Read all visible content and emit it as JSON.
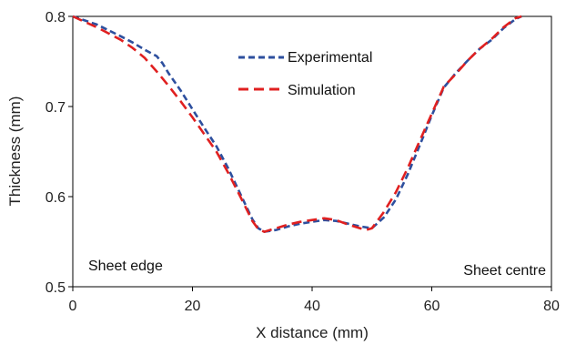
{
  "chart_data": {
    "type": "line",
    "xlabel": "X distance (mm)",
    "ylabel": "Thickness (mm)",
    "xlim": [
      0,
      80
    ],
    "ylim": [
      0.5,
      0.8
    ],
    "x_ticks": [
      "0",
      "20",
      "40",
      "60",
      "80"
    ],
    "y_ticks": [
      "0.5",
      "0.6",
      "0.7",
      "0.8"
    ],
    "grid": false,
    "legend_position": "top-center",
    "annotations": [
      "Sheet edge",
      "Sheet centre"
    ],
    "series": [
      {
        "name": "Experimental",
        "color": "#2d4f9e",
        "dash": "dashed",
        "x": [
          0,
          4,
          8,
          10,
          12,
          14,
          15,
          16,
          18,
          20,
          22,
          24,
          26,
          28,
          30,
          31,
          32,
          34,
          36,
          38,
          40,
          42,
          44,
          46,
          48,
          50,
          52,
          54,
          56,
          58,
          60,
          62,
          64,
          66,
          68,
          70,
          72,
          74,
          75
        ],
        "y": [
          0.8,
          0.791,
          0.778,
          0.771,
          0.763,
          0.756,
          0.748,
          0.737,
          0.718,
          0.697,
          0.676,
          0.656,
          0.631,
          0.603,
          0.575,
          0.565,
          0.561,
          0.563,
          0.567,
          0.57,
          0.572,
          0.574,
          0.573,
          0.57,
          0.567,
          0.565,
          0.577,
          0.597,
          0.625,
          0.657,
          0.69,
          0.721,
          0.737,
          0.751,
          0.764,
          0.774,
          0.787,
          0.797,
          0.8
        ]
      },
      {
        "name": "Simulation",
        "color": "#e02020",
        "dash": "dashed",
        "x": [
          0,
          4,
          8,
          10,
          12,
          14,
          16,
          18,
          20,
          22,
          24,
          26,
          28,
          30,
          31,
          32,
          34,
          36,
          38,
          40,
          42,
          44,
          46,
          48,
          49,
          50,
          52,
          54,
          56,
          58,
          60,
          62,
          64,
          66,
          68,
          70,
          72,
          74,
          75
        ],
        "y": [
          0.8,
          0.788,
          0.774,
          0.765,
          0.754,
          0.739,
          0.723,
          0.706,
          0.688,
          0.669,
          0.65,
          0.626,
          0.6,
          0.573,
          0.564,
          0.561,
          0.565,
          0.569,
          0.572,
          0.574,
          0.576,
          0.574,
          0.569,
          0.565,
          0.563,
          0.565,
          0.583,
          0.605,
          0.632,
          0.662,
          0.692,
          0.722,
          0.736,
          0.751,
          0.764,
          0.775,
          0.788,
          0.798,
          0.8
        ]
      }
    ]
  }
}
